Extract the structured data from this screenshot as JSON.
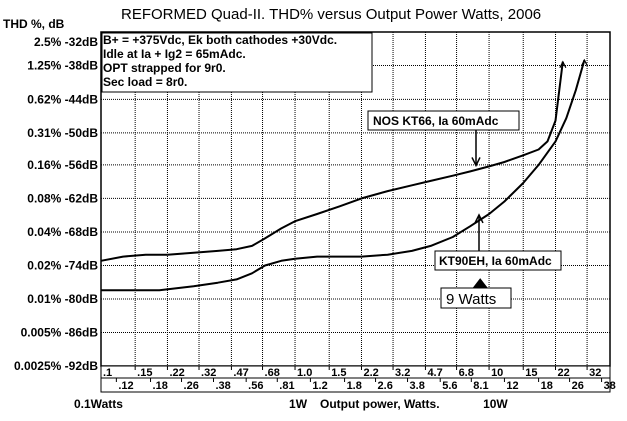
{
  "chart_data": {
    "type": "line",
    "title": "REFORMED Quad-II.  THD% versus Output Power Watts, 2006",
    "ylabel": "THD %, dB",
    "xlabel": "Output power, Watts.",
    "x_scale": "log",
    "y_scale": "log",
    "xlim": [
      0.1,
      42
    ],
    "ylim": [
      0.0025,
      2.5
    ],
    "grid": true,
    "y_ticks": [
      {
        "value": 2.5,
        "label": "2.5% -32dB"
      },
      {
        "value": 1.25,
        "label": "1.25% -38dB"
      },
      {
        "value": 0.62,
        "label": "0.62% -44dB"
      },
      {
        "value": 0.31,
        "label": "0.31% -50dB"
      },
      {
        "value": 0.16,
        "label": "0.16% -56dB"
      },
      {
        "value": 0.08,
        "label": "0.08% -62dB"
      },
      {
        "value": 0.04,
        "label": "0.04% -68dB"
      },
      {
        "value": 0.02,
        "label": "0.02% -74dB"
      },
      {
        "value": 0.01,
        "label": "0.01% -80dB"
      },
      {
        "value": 0.005,
        "label": "0.005% -86dB"
      },
      {
        "value": 0.0025,
        "label": "0.0025% -92dB"
      }
    ],
    "x_ticks_upper": [
      {
        "value": 0.1,
        "label": ".1"
      },
      {
        "value": 0.15,
        "label": ".15"
      },
      {
        "value": 0.22,
        "label": ".22"
      },
      {
        "value": 0.32,
        "label": ".32"
      },
      {
        "value": 0.47,
        "label": ".47"
      },
      {
        "value": 0.68,
        "label": ".68"
      },
      {
        "value": 1.0,
        "label": "1.0"
      },
      {
        "value": 1.5,
        "label": "1.5"
      },
      {
        "value": 2.2,
        "label": "2.2"
      },
      {
        "value": 3.2,
        "label": "3.2"
      },
      {
        "value": 4.7,
        "label": "4.7"
      },
      {
        "value": 6.8,
        "label": "6.8"
      },
      {
        "value": 10,
        "label": "10"
      },
      {
        "value": 15,
        "label": "15"
      },
      {
        "value": 22,
        "label": "22"
      },
      {
        "value": 32,
        "label": "32"
      }
    ],
    "x_ticks_lower": [
      {
        "value": 0.12,
        "label": ".12"
      },
      {
        "value": 0.18,
        "label": ".18"
      },
      {
        "value": 0.26,
        "label": ".26"
      },
      {
        "value": 0.38,
        "label": ".38"
      },
      {
        "value": 0.56,
        "label": ".56"
      },
      {
        "value": 0.81,
        "label": ".81"
      },
      {
        "value": 1.2,
        "label": "1.2"
      },
      {
        "value": 1.8,
        "label": "1.8"
      },
      {
        "value": 2.6,
        "label": "2.6"
      },
      {
        "value": 3.8,
        "label": "3.8"
      },
      {
        "value": 5.6,
        "label": "5.6"
      },
      {
        "value": 8.1,
        "label": "8.1"
      },
      {
        "value": 12,
        "label": "12"
      },
      {
        "value": 18,
        "label": "18"
      },
      {
        "value": 26,
        "label": "26"
      },
      {
        "value": 38,
        "label": "38"
      }
    ],
    "x_bottom_labels": [
      "0.1Watts",
      "1W",
      "Output power, Watts.",
      "10W"
    ],
    "notes": [
      "B+ = +375Vdc, Ek both cathodes +30Vdc.",
      "Idle at Ia + Ig2 = 65mAdc.",
      "OPT strapped for 9r0.",
      "Sec load = 8r0."
    ],
    "series": [
      {
        "name": "NOS KT66, Ia 60mAdc",
        "x": [
          0.1,
          0.13,
          0.17,
          0.22,
          0.3,
          0.4,
          0.5,
          0.6,
          0.7,
          0.85,
          1.0,
          1.3,
          1.7,
          2.2,
          3.0,
          4.0,
          5.0,
          6.5,
          8.0,
          10,
          12,
          15,
          18,
          20,
          22,
          24
        ],
        "y": [
          0.022,
          0.024,
          0.025,
          0.025,
          0.026,
          0.027,
          0.028,
          0.03,
          0.035,
          0.043,
          0.05,
          0.058,
          0.068,
          0.08,
          0.093,
          0.105,
          0.115,
          0.128,
          0.14,
          0.155,
          0.17,
          0.195,
          0.22,
          0.26,
          0.4,
          1.35
        ]
      },
      {
        "name": "KT90EH, Ia 60mAdc",
        "x": [
          0.1,
          0.15,
          0.2,
          0.3,
          0.4,
          0.5,
          0.6,
          0.7,
          0.85,
          1.0,
          1.3,
          1.7,
          2.2,
          3.0,
          4.0,
          5.0,
          6.5,
          8.0,
          10,
          12,
          15,
          18,
          22,
          25,
          28,
          31
        ],
        "y": [
          0.012,
          0.012,
          0.012,
          0.013,
          0.014,
          0.015,
          0.017,
          0.02,
          0.022,
          0.023,
          0.024,
          0.024,
          0.024,
          0.025,
          0.027,
          0.03,
          0.036,
          0.045,
          0.058,
          0.075,
          0.11,
          0.16,
          0.26,
          0.42,
          0.75,
          1.4
        ]
      }
    ],
    "annotations": [
      {
        "text": "NOS KT66, Ia 60mAdc",
        "arrow_to": {
          "x": 10,
          "y": 0.155
        }
      },
      {
        "text": "KT90EH, Ia 60mAdc",
        "arrow_to": {
          "x": 10,
          "y": 0.058
        }
      },
      {
        "text": "9 Watts",
        "marker": {
          "x": 9
        }
      }
    ]
  }
}
